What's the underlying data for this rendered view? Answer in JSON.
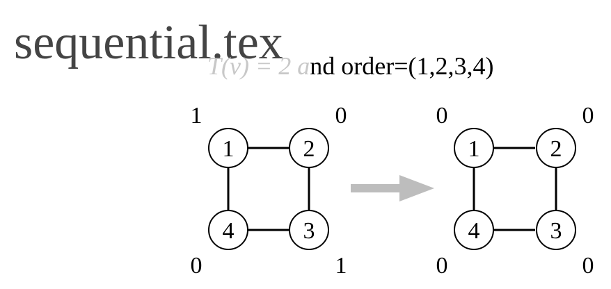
{
  "file_title": "sequential.tex",
  "caption": {
    "faded_part": "T(v) = 2 a",
    "main_part": "nd order=(1,2,3,4)"
  },
  "colors": {
    "title": "#444444",
    "faded": "#c8c8c8",
    "arrow": "#bdbdbd",
    "ink": "#000000"
  },
  "graphs": [
    {
      "nodes": [
        "1",
        "2",
        "3",
        "4"
      ],
      "edges": [
        [
          "1",
          "2"
        ],
        [
          "2",
          "3"
        ],
        [
          "3",
          "4"
        ],
        [
          "4",
          "1"
        ]
      ],
      "weights": [
        "1",
        "0",
        "1",
        "0"
      ]
    },
    {
      "nodes": [
        "1",
        "2",
        "3",
        "4"
      ],
      "edges": [
        [
          "1",
          "2"
        ],
        [
          "2",
          "3"
        ],
        [
          "3",
          "4"
        ],
        [
          "4",
          "1"
        ]
      ],
      "weights": [
        "0",
        "0",
        "0",
        "0"
      ]
    }
  ],
  "arrow_icon": "right-arrow-icon"
}
